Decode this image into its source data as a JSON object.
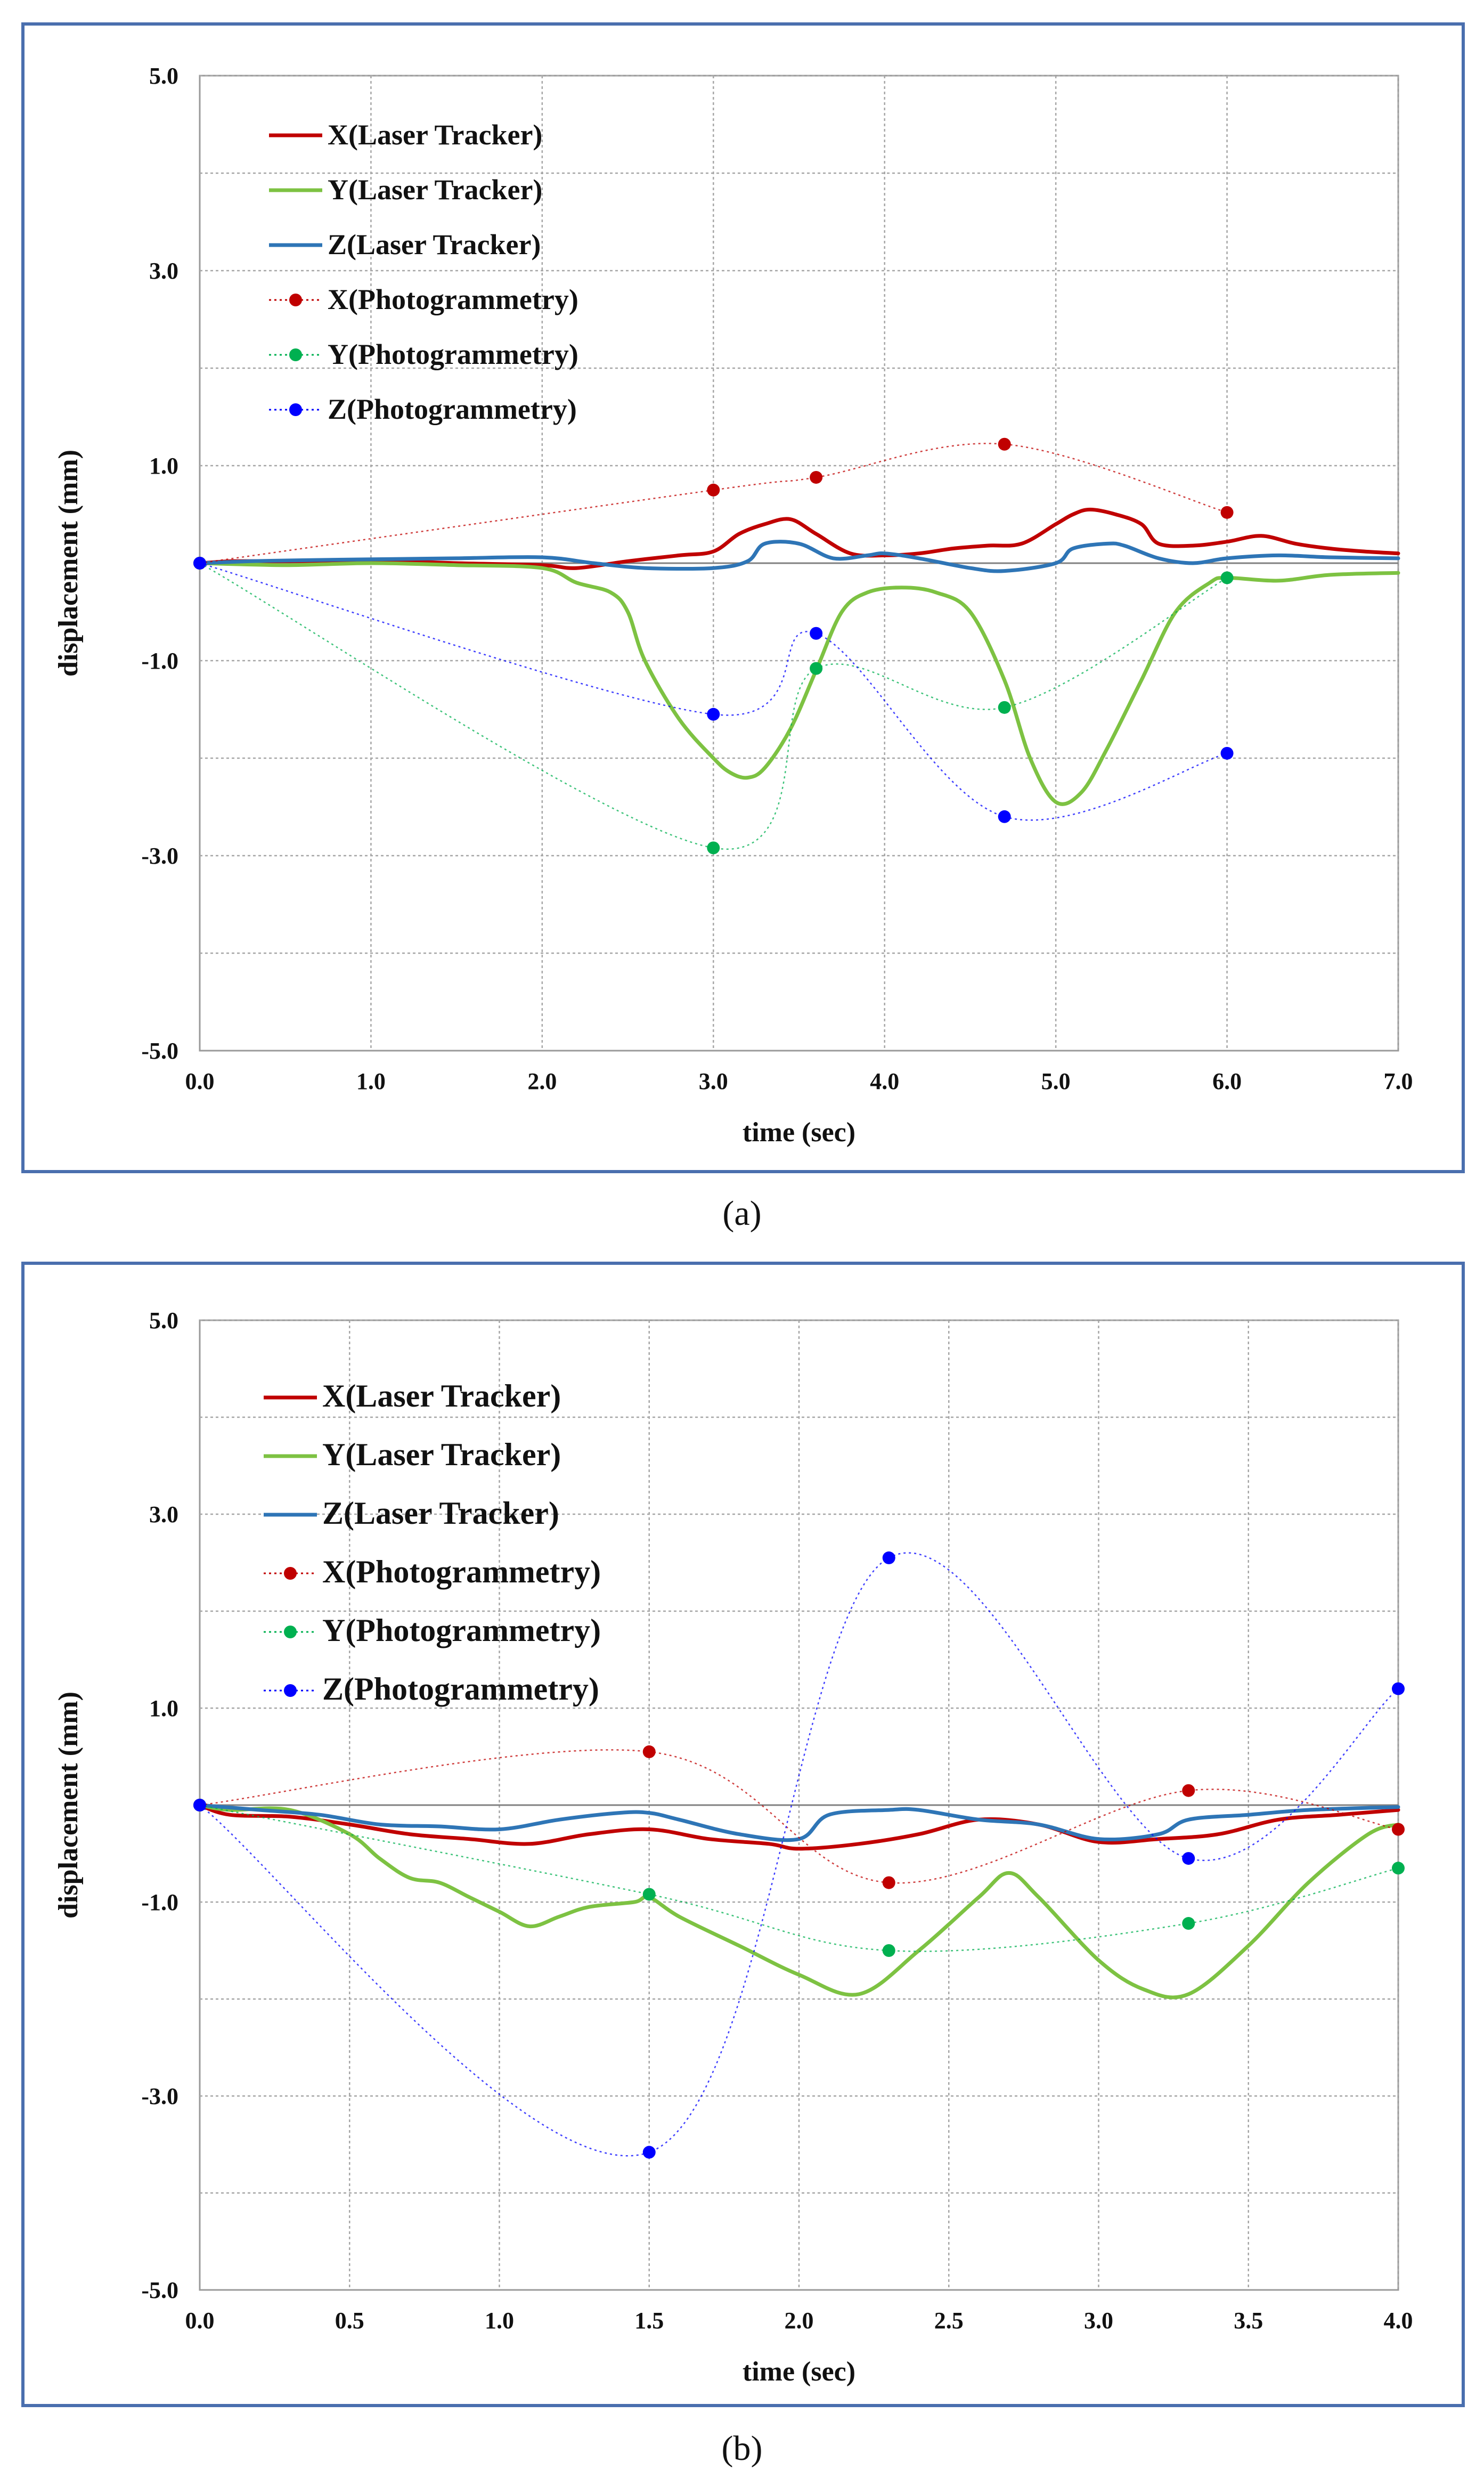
{
  "chart_data": [
    {
      "type": "line",
      "panel_label": "a",
      "xlabel": "time (sec)",
      "ylabel": "displacement (mm)",
      "xlim": [
        0,
        7
      ],
      "ylim": [
        -5,
        5
      ],
      "x_ticks": [
        "0.0",
        "1.0",
        "2.0",
        "3.0",
        "4.0",
        "5.0",
        "6.0",
        "7.0"
      ],
      "x_tick_values": [
        0,
        1,
        2,
        3,
        4,
        5,
        6,
        7
      ],
      "y_ticks": [
        "5.0",
        "3.0",
        "1.0",
        "-1.0",
        "-3.0",
        "-5.0"
      ],
      "y_tick_values": [
        5,
        3,
        1,
        -1,
        -3,
        -5
      ],
      "x_grid_values": [
        1,
        2,
        3,
        4,
        5,
        6,
        7
      ],
      "y_grid_values": [
        5,
        4,
        3,
        2,
        1,
        0,
        -1,
        -2,
        -3,
        -4
      ],
      "grid": true,
      "legend_position": "top-left",
      "series": [
        {
          "name": "X(Laser Tracker)",
          "style": "solid",
          "color": "#c00000",
          "x": [
            0,
            0.2,
            0.5,
            1.0,
            1.5,
            2.0,
            2.2,
            2.5,
            2.8,
            3.0,
            3.15,
            3.3,
            3.45,
            3.6,
            3.8,
            4.0,
            4.2,
            4.4,
            4.6,
            4.8,
            5.0,
            5.1,
            5.2,
            5.35,
            5.5,
            5.6,
            5.8,
            6.0,
            6.2,
            6.4,
            6.6,
            6.8,
            7.0
          ],
          "y": [
            0,
            0.02,
            0.02,
            0.03,
            0.0,
            -0.02,
            -0.05,
            0.02,
            0.08,
            0.12,
            0.3,
            0.4,
            0.45,
            0.3,
            0.1,
            0.08,
            0.1,
            0.15,
            0.18,
            0.2,
            0.4,
            0.5,
            0.55,
            0.5,
            0.4,
            0.2,
            0.18,
            0.22,
            0.28,
            0.2,
            0.15,
            0.12,
            0.1
          ]
        },
        {
          "name": "Y(Laser Tracker)",
          "style": "solid",
          "color": "#7dc242",
          "x": [
            0,
            0.5,
            1.0,
            1.5,
            2.0,
            2.2,
            2.4,
            2.5,
            2.6,
            2.8,
            3.0,
            3.1,
            3.2,
            3.3,
            3.45,
            3.6,
            3.75,
            3.9,
            4.1,
            4.3,
            4.5,
            4.7,
            4.85,
            5.0,
            5.15,
            5.3,
            5.5,
            5.7,
            5.9,
            6.0,
            6.3,
            6.6,
            7.0
          ],
          "y": [
            0,
            -0.02,
            0.0,
            -0.02,
            -0.05,
            -0.2,
            -0.3,
            -0.5,
            -1.0,
            -1.6,
            -2.0,
            -2.15,
            -2.2,
            -2.1,
            -1.7,
            -1.1,
            -0.5,
            -0.3,
            -0.25,
            -0.3,
            -0.5,
            -1.2,
            -2.0,
            -2.45,
            -2.35,
            -1.9,
            -1.2,
            -0.5,
            -0.2,
            -0.15,
            -0.18,
            -0.12,
            -0.1
          ]
        },
        {
          "name": "Z(Laser Tracker)",
          "style": "solid",
          "color": "#2e75b6",
          "x": [
            0,
            0.3,
            0.6,
            1.0,
            1.5,
            2.0,
            2.3,
            2.6,
            3.0,
            3.2,
            3.3,
            3.5,
            3.7,
            3.9,
            4.0,
            4.2,
            4.5,
            4.7,
            5.0,
            5.1,
            5.3,
            5.4,
            5.6,
            5.8,
            6.0,
            6.3,
            6.6,
            7.0
          ],
          "y": [
            0,
            0.02,
            0.03,
            0.04,
            0.05,
            0.06,
            0.0,
            -0.05,
            -0.05,
            0.02,
            0.2,
            0.2,
            0.05,
            0.08,
            0.1,
            0.05,
            -0.05,
            -0.08,
            0.0,
            0.15,
            0.2,
            0.18,
            0.05,
            0.0,
            0.05,
            0.08,
            0.06,
            0.05
          ]
        },
        {
          "name": "X(Photogrammetry)",
          "style": "dotted-markers",
          "color": "#c00000",
          "x": [
            0,
            3.0,
            3.6,
            4.7,
            6.0
          ],
          "y": [
            0,
            0.75,
            0.88,
            1.22,
            0.52
          ]
        },
        {
          "name": "Y(Photogrammetry)",
          "style": "dotted-markers",
          "color": "#00b050",
          "x": [
            0,
            3.0,
            3.6,
            4.7,
            6.0
          ],
          "y": [
            0,
            -2.92,
            -1.08,
            -1.48,
            -0.15
          ]
        },
        {
          "name": "Z(Photogrammetry)",
          "style": "dotted-markers",
          "color": "#0000ff",
          "x": [
            0,
            3.0,
            3.6,
            4.7,
            6.0
          ],
          "y": [
            0,
            -1.55,
            -0.72,
            -2.6,
            -1.95
          ]
        }
      ]
    },
    {
      "type": "line",
      "panel_label": "b",
      "xlabel": "time (sec)",
      "ylabel": "displacement (mm)",
      "xlim": [
        0,
        4
      ],
      "ylim": [
        -5,
        5
      ],
      "x_ticks": [
        "0.0",
        "0.5",
        "1.0",
        "1.5",
        "2.0",
        "2.5",
        "3.0",
        "3.5",
        "4.0"
      ],
      "x_tick_values": [
        0,
        0.5,
        1,
        1.5,
        2,
        2.5,
        3,
        3.5,
        4
      ],
      "y_ticks": [
        "5.0",
        "3.0",
        "1.0",
        "-1.0",
        "-3.0",
        "-5.0"
      ],
      "y_tick_values": [
        5,
        3,
        1,
        -1,
        -3,
        -5
      ],
      "x_grid_values": [
        0.5,
        1,
        1.5,
        2,
        2.5,
        3,
        3.5,
        4
      ],
      "y_grid_values": [
        5,
        4,
        3,
        2,
        1,
        0,
        -1,
        -2,
        -3,
        -4
      ],
      "grid": true,
      "legend_position": "top-left",
      "series": [
        {
          "name": "X(Laser Tracker)",
          "style": "solid",
          "color": "#c00000",
          "x": [
            0,
            0.1,
            0.3,
            0.5,
            0.7,
            0.9,
            1.1,
            1.3,
            1.5,
            1.7,
            1.9,
            2.0,
            2.2,
            2.4,
            2.6,
            2.8,
            3.0,
            3.2,
            3.4,
            3.6,
            3.8,
            4.0
          ],
          "y": [
            0,
            -0.1,
            -0.12,
            -0.2,
            -0.3,
            -0.35,
            -0.4,
            -0.3,
            -0.25,
            -0.35,
            -0.4,
            -0.45,
            -0.4,
            -0.3,
            -0.15,
            -0.2,
            -0.38,
            -0.35,
            -0.3,
            -0.15,
            -0.1,
            -0.05
          ]
        },
        {
          "name": "Y(Laser Tracker)",
          "style": "solid",
          "color": "#7dc242",
          "x": [
            0,
            0.1,
            0.3,
            0.5,
            0.6,
            0.7,
            0.8,
            0.9,
            1.0,
            1.1,
            1.2,
            1.3,
            1.45,
            1.5,
            1.6,
            1.8,
            2.0,
            2.2,
            2.4,
            2.6,
            2.7,
            2.8,
            3.0,
            3.15,
            3.3,
            3.5,
            3.7,
            3.9,
            4.0
          ],
          "y": [
            0,
            -0.05,
            -0.05,
            -0.3,
            -0.55,
            -0.75,
            -0.8,
            -0.95,
            -1.1,
            -1.25,
            -1.15,
            -1.05,
            -1.0,
            -0.95,
            -1.15,
            -1.45,
            -1.75,
            -1.95,
            -1.5,
            -0.95,
            -0.7,
            -0.95,
            -1.6,
            -1.9,
            -1.95,
            -1.45,
            -0.8,
            -0.3,
            -0.2
          ]
        },
        {
          "name": "Z(Laser Tracker)",
          "style": "solid",
          "color": "#2e75b6",
          "x": [
            0,
            0.2,
            0.4,
            0.6,
            0.8,
            1.0,
            1.2,
            1.4,
            1.5,
            1.6,
            1.8,
            2.0,
            2.1,
            2.3,
            2.4,
            2.6,
            2.8,
            3.0,
            3.2,
            3.3,
            3.5,
            3.7,
            4.0
          ],
          "y": [
            0,
            -0.05,
            -0.1,
            -0.2,
            -0.22,
            -0.25,
            -0.15,
            -0.08,
            -0.08,
            -0.15,
            -0.3,
            -0.35,
            -0.1,
            -0.05,
            -0.05,
            -0.15,
            -0.2,
            -0.35,
            -0.3,
            -0.15,
            -0.1,
            -0.05,
            -0.02
          ]
        },
        {
          "name": "X(Photogrammetry)",
          "style": "dotted-markers",
          "color": "#c00000",
          "x": [
            0,
            1.5,
            2.3,
            3.3,
            4.0
          ],
          "y": [
            0,
            0.55,
            -0.8,
            0.15,
            -0.25
          ]
        },
        {
          "name": "Y(Photogrammetry)",
          "style": "dotted-markers",
          "color": "#00b050",
          "x": [
            0,
            1.5,
            2.3,
            3.3,
            4.0
          ],
          "y": [
            0,
            -0.92,
            -1.5,
            -1.22,
            -0.65
          ]
        },
        {
          "name": "Z(Photogrammetry)",
          "style": "dotted-markers",
          "color": "#0000ff",
          "x": [
            0,
            1.5,
            2.3,
            3.3,
            4.0
          ],
          "y": [
            0,
            -3.58,
            2.55,
            -0.55,
            1.2
          ]
        }
      ]
    }
  ],
  "captions": {
    "a": "(a)",
    "b": "(b)"
  }
}
